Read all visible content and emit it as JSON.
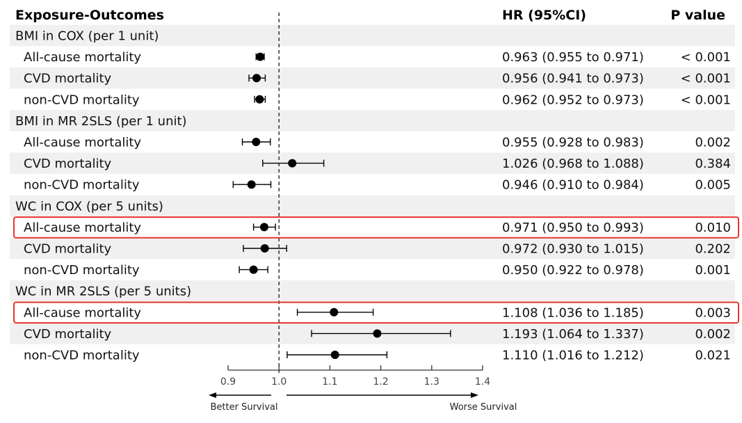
{
  "headers": {
    "exposure": "Exposure-Outcomes",
    "hr": "HR (95%CI)",
    "p": "P value"
  },
  "rows": [
    {
      "type": "group",
      "label": "BMI in COX (per 1 unit)"
    },
    {
      "type": "item",
      "label": "All-cause mortality",
      "hr": 0.963,
      "lo": 0.955,
      "hi": 0.971,
      "hr_text": "0.963 (0.955 to 0.971)",
      "p": "< 0.001",
      "highlight": false
    },
    {
      "type": "item",
      "label": "CVD mortality",
      "hr": 0.956,
      "lo": 0.941,
      "hi": 0.973,
      "hr_text": "0.956 (0.941 to 0.973)",
      "p": "< 0.001",
      "highlight": false
    },
    {
      "type": "item",
      "label": "non-CVD mortality",
      "hr": 0.962,
      "lo": 0.952,
      "hi": 0.973,
      "hr_text": "0.962 (0.952 to 0.973)",
      "p": "< 0.001",
      "highlight": false
    },
    {
      "type": "group",
      "label": "BMI in MR 2SLS (per 1 unit)"
    },
    {
      "type": "item",
      "label": "All-cause mortality",
      "hr": 0.955,
      "lo": 0.928,
      "hi": 0.983,
      "hr_text": "0.955 (0.928 to 0.983)",
      "p": "0.002",
      "highlight": false
    },
    {
      "type": "item",
      "label": "CVD mortality",
      "hr": 1.026,
      "lo": 0.968,
      "hi": 1.088,
      "hr_text": "1.026 (0.968 to 1.088)",
      "p": "0.384",
      "highlight": false
    },
    {
      "type": "item",
      "label": "non-CVD mortality",
      "hr": 0.946,
      "lo": 0.91,
      "hi": 0.984,
      "hr_text": "0.946 (0.910 to 0.984)",
      "p": "0.005",
      "highlight": false
    },
    {
      "type": "group",
      "label": "WC in COX (per 5 units)"
    },
    {
      "type": "item",
      "label": "All-cause mortality",
      "hr": 0.971,
      "lo": 0.95,
      "hi": 0.993,
      "hr_text": "0.971 (0.950 to 0.993)",
      "p": "0.010",
      "highlight": true
    },
    {
      "type": "item",
      "label": "CVD mortality",
      "hr": 0.972,
      "lo": 0.93,
      "hi": 1.015,
      "hr_text": "0.972 (0.930 to 1.015)",
      "p": "0.202",
      "highlight": false
    },
    {
      "type": "item",
      "label": "non-CVD mortality",
      "hr": 0.95,
      "lo": 0.922,
      "hi": 0.978,
      "hr_text": "0.950 (0.922 to 0.978)",
      "p": "0.001",
      "highlight": false
    },
    {
      "type": "group",
      "label": "WC in MR 2SLS (per 5 units)"
    },
    {
      "type": "item",
      "label": "All-cause mortality",
      "hr": 1.108,
      "lo": 1.036,
      "hi": 1.185,
      "hr_text": "1.108 (1.036 to 1.185)",
      "p": "0.003",
      "highlight": true
    },
    {
      "type": "item",
      "label": "CVD mortality",
      "hr": 1.193,
      "lo": 1.064,
      "hi": 1.337,
      "hr_text": "1.193 (1.064 to 1.337)",
      "p": "0.002",
      "highlight": false
    },
    {
      "type": "item",
      "label": "non-CVD mortality",
      "hr": 1.11,
      "lo": 1.016,
      "hi": 1.212,
      "hr_text": "1.110 (1.016 to 1.212)",
      "p": "0.021",
      "highlight": false
    }
  ],
  "chart_data": {
    "type": "forest",
    "xlim": [
      0.9,
      1.4
    ],
    "xticks": [
      "0.9",
      "1.0",
      "1.1",
      "1.2",
      "1.3",
      "1.4"
    ],
    "reference_line": 1.0,
    "direction_labels": {
      "left": "Better Survival",
      "right": "Worse Survival"
    }
  },
  "colors": {
    "stripe": "#f0f0f0",
    "highlight": "#e8332a",
    "marker": "#000000",
    "text": "#111111"
  }
}
